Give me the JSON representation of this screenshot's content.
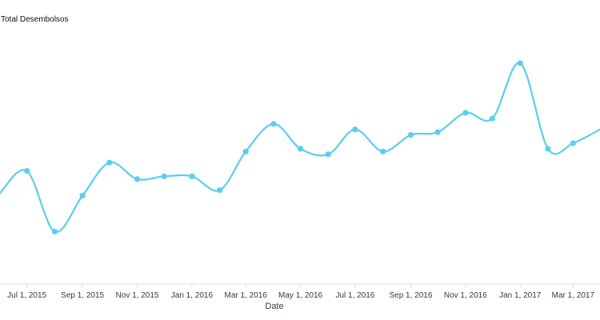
{
  "chart_data": {
    "type": "line",
    "series_label": "Total Desembolsos",
    "xlabel": "Date",
    "x_ticks": [
      "Jul 1, 2015",
      "Sep 1, 2015",
      "Nov 1, 2015",
      "Jan 1, 2016",
      "Mar 1, 2016",
      "May 1, 2016",
      "Jul 1, 2016",
      "Sep 1, 2016",
      "Nov 1, 2016",
      "Jan 1, 2017",
      "Mar 1, 2017"
    ],
    "x_range": [
      "2015-06-01",
      "2017-03-31"
    ],
    "y_range": [
      0,
      100
    ],
    "grid": false,
    "line_color": "#5bcdf0",
    "series": [
      {
        "points": [
          {
            "x": "2015-06-01",
            "y": 33
          },
          {
            "x": "2015-07-01",
            "y": 41
          },
          {
            "x": "2015-08-01",
            "y": 19
          },
          {
            "x": "2015-09-01",
            "y": 32
          },
          {
            "x": "2015-10-01",
            "y": 44
          },
          {
            "x": "2015-11-01",
            "y": 38
          },
          {
            "x": "2015-12-01",
            "y": 39
          },
          {
            "x": "2016-01-01",
            "y": 39
          },
          {
            "x": "2016-02-01",
            "y": 34
          },
          {
            "x": "2016-03-01",
            "y": 48
          },
          {
            "x": "2016-04-01",
            "y": 58
          },
          {
            "x": "2016-05-01",
            "y": 49
          },
          {
            "x": "2016-06-01",
            "y": 47
          },
          {
            "x": "2016-07-01",
            "y": 56
          },
          {
            "x": "2016-08-01",
            "y": 48
          },
          {
            "x": "2016-09-01",
            "y": 54
          },
          {
            "x": "2016-10-01",
            "y": 55
          },
          {
            "x": "2016-11-01",
            "y": 62
          },
          {
            "x": "2016-12-01",
            "y": 60
          },
          {
            "x": "2017-01-01",
            "y": 80
          },
          {
            "x": "2017-02-01",
            "y": 49
          },
          {
            "x": "2017-03-01",
            "y": 51
          },
          {
            "x": "2017-03-31",
            "y": 56
          }
        ]
      }
    ]
  }
}
